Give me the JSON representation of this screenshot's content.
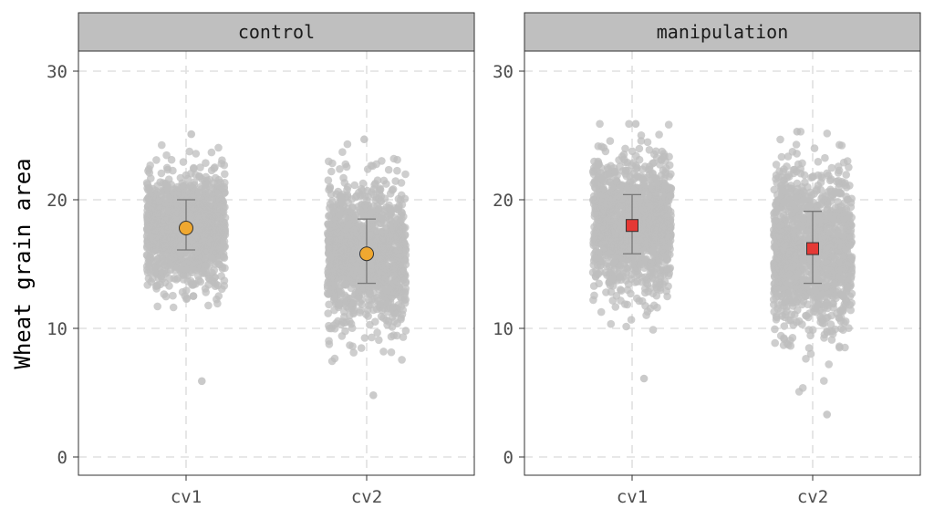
{
  "chart_data": {
    "type": "scatter",
    "ylabel": "Wheat grain area",
    "xlabel": "",
    "ylim": [
      0,
      30
    ],
    "yticks": [
      0,
      10,
      20,
      30
    ],
    "categories": [
      "cv1",
      "cv2"
    ],
    "grid": "dashed",
    "panels": [
      {
        "strip": "control",
        "summary_shape": "circle",
        "summary_color": "#f0a830",
        "groups": [
          {
            "category": "cv1",
            "mean": 17.8,
            "lower": 16.1,
            "upper": 20.0,
            "raw_min": 5.9,
            "raw_max": 25.1
          },
          {
            "category": "cv2",
            "mean": 15.8,
            "lower": 13.5,
            "upper": 18.5,
            "raw_min": 4.8,
            "raw_max": 24.7
          }
        ]
      },
      {
        "strip": "manipulation",
        "summary_shape": "square",
        "summary_color": "#e53935",
        "groups": [
          {
            "category": "cv1",
            "mean": 18.0,
            "lower": 15.8,
            "upper": 20.4,
            "raw_min": 6.1,
            "raw_max": 25.9
          },
          {
            "category": "cv2",
            "mean": 16.2,
            "lower": 13.5,
            "upper": 19.1,
            "raw_min": 3.3,
            "raw_max": 25.3
          }
        ]
      }
    ]
  }
}
